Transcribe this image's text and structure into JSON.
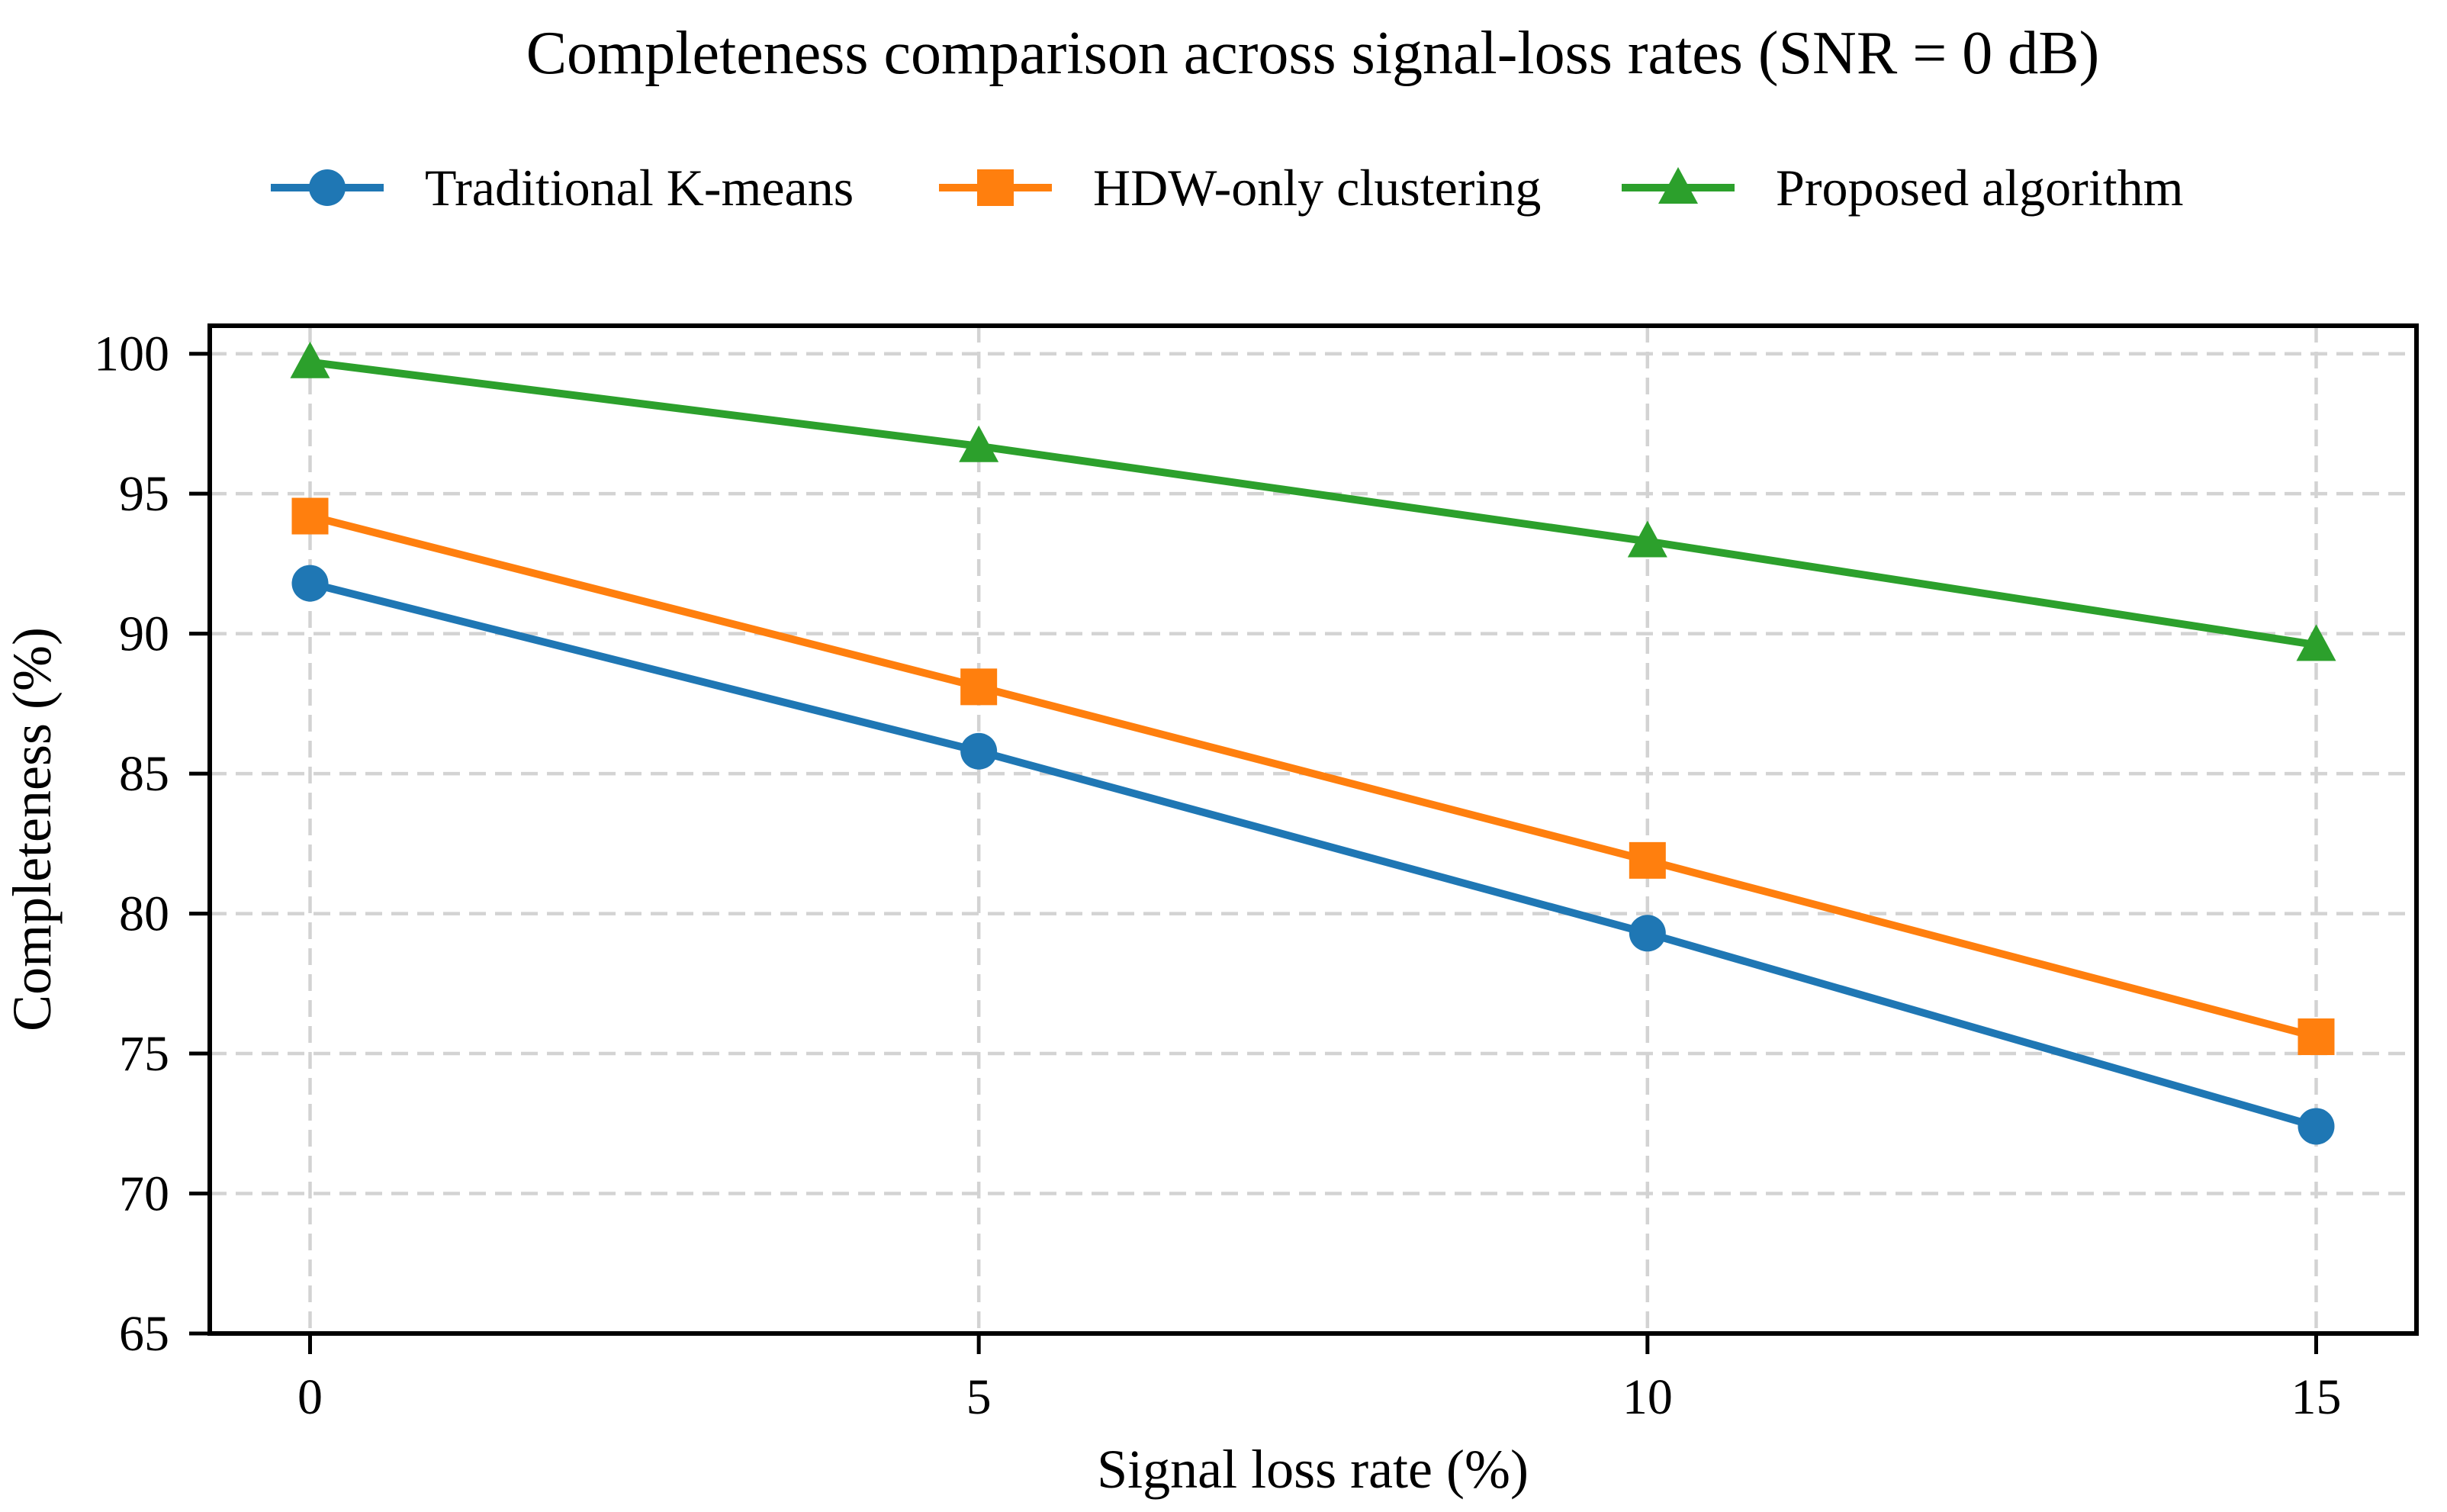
{
  "chart_data": {
    "type": "line",
    "title": "Completeness comparison across signal-loss rates (SNR = 0 dB)",
    "xlabel": "Signal loss rate (%)",
    "ylabel": "Completeness (%)",
    "x": [
      0,
      5,
      10,
      15
    ],
    "xtick_labels": [
      "0",
      "5",
      "10",
      "15"
    ],
    "ytick_labels": [
      "65",
      "70",
      "75",
      "80",
      "85",
      "90",
      "95",
      "100"
    ],
    "xlim": [
      -0.75,
      15.75
    ],
    "ylim": [
      65,
      101
    ],
    "grid": {
      "style": "dashed",
      "on": true
    },
    "legend": {
      "position": "top-horizontal",
      "frame": false
    },
    "series": [
      {
        "name": "Traditional K-means",
        "marker": "circle",
        "color": "#1f77b4",
        "values": [
          91.8,
          85.8,
          79.3,
          72.4
        ]
      },
      {
        "name": "HDW-only clustering",
        "marker": "square",
        "color": "#ff7f0e",
        "values": [
          94.2,
          88.1,
          81.9,
          75.6
        ]
      },
      {
        "name": "Proposed algorithm",
        "marker": "triangle",
        "color": "#2ca02c",
        "values": [
          99.7,
          96.7,
          93.3,
          89.6
        ]
      }
    ],
    "colors": {
      "grid": "#d3d3d3",
      "axis": "#000000",
      "text": "#000000",
      "background": "#ffffff"
    }
  }
}
